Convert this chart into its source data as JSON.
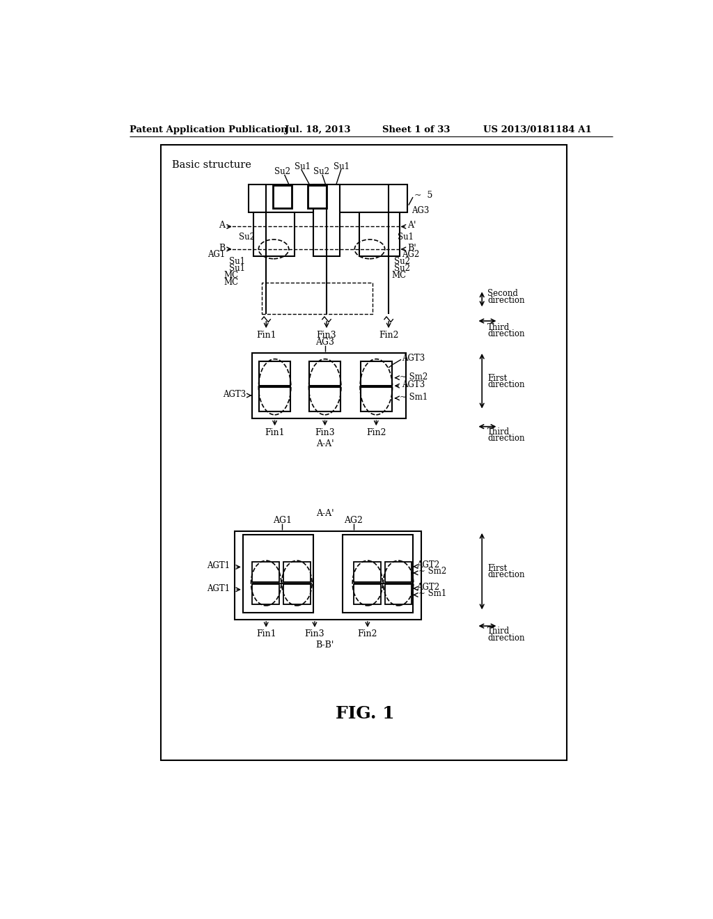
{
  "bg_color": "#ffffff",
  "header_text": "Patent Application Publication",
  "header_date": "Jul. 18, 2013",
  "header_sheet": "Sheet 1 of 33",
  "header_patent": "US 2013/0181184 A1",
  "figure_label": "FIG. 1",
  "basic_structure_label": "Basic structure"
}
